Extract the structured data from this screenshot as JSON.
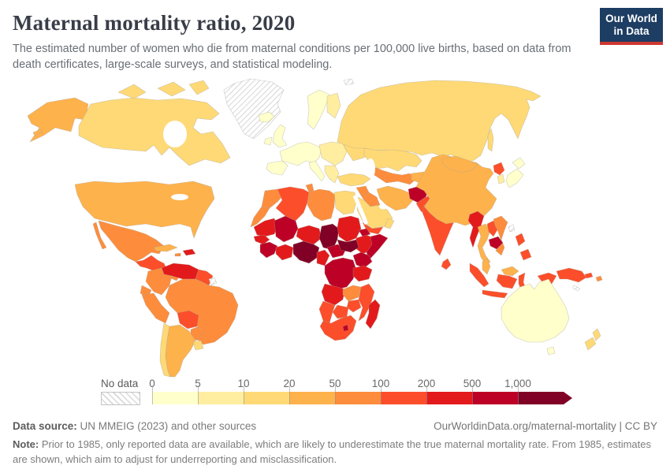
{
  "header": {
    "title": "Maternal mortality ratio, 2020",
    "subtitle": "The estimated number of women who die from maternal conditions per 100,000 live births, based on data from death certificates, large-scale surveys, and statistical modeling."
  },
  "logo": {
    "line1": "Our World",
    "line2": "in Data",
    "bg_color": "#1d3d63",
    "accent_color": "#cd3731"
  },
  "legend": {
    "no_data_label": "No data",
    "tick_labels": [
      "0",
      "5",
      "10",
      "20",
      "50",
      "100",
      "200",
      "500",
      "1,000"
    ],
    "bin_colors": [
      "#FFFFCC",
      "#FFEDA0",
      "#FED976",
      "#FEB24C",
      "#FD8D3C",
      "#FC4E2A",
      "#E31A1C",
      "#BD0026",
      "#800026"
    ]
  },
  "footer": {
    "source_label": "Data source:",
    "source_text": " UN MMEIG (2023) and other sources",
    "link_text": "OurWorldinData.org/maternal-mortality | CC BY",
    "note_label": "Note:",
    "note_text": " Prior to 1985, only reported data are available, which are likely to underestimate the true maternal mortality rate. From 1985, estimates are shown, which aim to adjust for underreporting and misclassification."
  },
  "chart_data": {
    "type": "choropleth",
    "title": "Maternal mortality ratio, 2020",
    "unit": "maternal deaths per 100,000 live births",
    "legend_bins": [
      {
        "range": "0-5",
        "color": "#FFFFCC"
      },
      {
        "range": "5-10",
        "color": "#FFEDA0"
      },
      {
        "range": "10-20",
        "color": "#FED976"
      },
      {
        "range": "20-50",
        "color": "#FEB24C"
      },
      {
        "range": "50-100",
        "color": "#FD8D3C"
      },
      {
        "range": "100-200",
        "color": "#FC4E2A"
      },
      {
        "range": "200-500",
        "color": "#E31A1C"
      },
      {
        "range": "500-1,000",
        "color": "#BD0026"
      },
      {
        "range": "1,000+",
        "color": "#800026"
      }
    ],
    "no_data": {
      "label": "No data",
      "pattern": "diagonal-hatch"
    },
    "regions": {
      "united-states": {
        "name": "United States",
        "bin": "20-50",
        "color": "#FEB24C"
      },
      "canada": {
        "name": "Canada",
        "bin": "10-20",
        "color": "#FED976"
      },
      "greenland": {
        "name": "Greenland",
        "bin": "no-data",
        "color": "hatch"
      },
      "svalbard": {
        "name": "Svalbard",
        "bin": "no-data",
        "color": "hatch"
      },
      "mexico": {
        "name": "Mexico",
        "bin": "50-100",
        "color": "#FD8D3C"
      },
      "guatemala-region": {
        "name": "Central America (north)",
        "bin": "100-200",
        "color": "#FC4E2A"
      },
      "panama-region": {
        "name": "Central America (south)",
        "bin": "50-100",
        "color": "#FD8D3C"
      },
      "cuba": {
        "name": "Cuba",
        "bin": "20-50",
        "color": "#FEB24C"
      },
      "haiti": {
        "name": "Haiti / Dominican Republic",
        "bin": "200-500",
        "color": "#E31A1C"
      },
      "jamaica": {
        "name": "Jamaica",
        "bin": "50-100",
        "color": "#FD8D3C"
      },
      "venezuela": {
        "name": "Venezuela",
        "bin": "200-500",
        "color": "#E31A1C"
      },
      "colombia": {
        "name": "Colombia",
        "bin": "50-100",
        "color": "#FD8D3C"
      },
      "guyana": {
        "name": "Guyana / Suriname",
        "bin": "100-200",
        "color": "#FC4E2A"
      },
      "french-guiana": {
        "name": "French Guiana",
        "bin": "no-data",
        "color": "hatch"
      },
      "ecuador": {
        "name": "Ecuador",
        "bin": "50-100",
        "color": "#FD8D3C"
      },
      "peru": {
        "name": "Peru",
        "bin": "50-100",
        "color": "#FD8D3C"
      },
      "brazil": {
        "name": "Brazil",
        "bin": "50-100",
        "color": "#FD8D3C"
      },
      "bolivia": {
        "name": "Bolivia",
        "bin": "100-200",
        "color": "#FC4E2A"
      },
      "paraguay": {
        "name": "Paraguay",
        "bin": "50-100",
        "color": "#FD8D3C"
      },
      "chile": {
        "name": "Chile",
        "bin": "10-20",
        "color": "#FED976"
      },
      "argentina": {
        "name": "Argentina",
        "bin": "20-50",
        "color": "#FEB24C"
      },
      "uruguay": {
        "name": "Uruguay",
        "bin": "10-20",
        "color": "#FED976"
      },
      "iceland": {
        "name": "Iceland",
        "bin": "0-5",
        "color": "#FFFFCC"
      },
      "united-kingdom": {
        "name": "United Kingdom",
        "bin": "0-5",
        "color": "#FFFFCC"
      },
      "ireland": {
        "name": "Ireland",
        "bin": "0-5",
        "color": "#FFFFCC"
      },
      "norway-sweden": {
        "name": "Norway / Sweden",
        "bin": "0-5",
        "color": "#FFFFCC"
      },
      "finland": {
        "name": "Finland",
        "bin": "5-10",
        "color": "#FFEDA0"
      },
      "western-europe": {
        "name": "Western Europe",
        "bin": "0-5",
        "color": "#FFFFCC"
      },
      "iberia": {
        "name": "Spain / Portugal",
        "bin": "0-5",
        "color": "#FFFFCC"
      },
      "italy": {
        "name": "Italy",
        "bin": "0-5",
        "color": "#FFFFCC"
      },
      "central-europe": {
        "name": "Central Europe",
        "bin": "5-10",
        "color": "#FFEDA0"
      },
      "balkans": {
        "name": "Balkans / Greece",
        "bin": "5-10",
        "color": "#FFEDA0"
      },
      "ukraine": {
        "name": "Ukraine",
        "bin": "10-20",
        "color": "#FED976"
      },
      "russia": {
        "name": "Russia",
        "bin": "10-20",
        "color": "#FED976"
      },
      "kazakhstan": {
        "name": "Kazakhstan",
        "bin": "10-20",
        "color": "#FED976"
      },
      "central-asia": {
        "name": "Turkmenistan / Uzbekistan",
        "bin": "50-100",
        "color": "#FD8D3C"
      },
      "kyrgyzstan-region": {
        "name": "Kyrgyzstan / Tajikistan",
        "bin": "20-50",
        "color": "#FEB24C"
      },
      "turkey": {
        "name": "Turkey",
        "bin": "10-20",
        "color": "#FED976"
      },
      "syria": {
        "name": "Syria",
        "bin": "50-100",
        "color": "#FD8D3C"
      },
      "iraq": {
        "name": "Iraq",
        "bin": "50-100",
        "color": "#FD8D3C"
      },
      "iran": {
        "name": "Iran",
        "bin": "20-50",
        "color": "#FEB24C"
      },
      "afghanistan": {
        "name": "Afghanistan",
        "bin": "500-1,000",
        "color": "#BD0026"
      },
      "pakistan": {
        "name": "Pakistan",
        "bin": "100-200",
        "color": "#FC4E2A"
      },
      "saudi-arabia": {
        "name": "Saudi Arabia",
        "bin": "10-20",
        "color": "#FED976"
      },
      "yemen": {
        "name": "Yemen",
        "bin": "100-200",
        "color": "#FC4E2A"
      },
      "oman": {
        "name": "Oman",
        "bin": "10-20",
        "color": "#FED976"
      },
      "morocco": {
        "name": "Morocco",
        "bin": "50-100",
        "color": "#FD8D3C"
      },
      "western-sahara": {
        "name": "Western Sahara",
        "bin": "50-100",
        "color": "#FD8D3C"
      },
      "algeria": {
        "name": "Algeria",
        "bin": "100-200",
        "color": "#FC4E2A"
      },
      "tunisia": {
        "name": "Tunisia",
        "bin": "50-100",
        "color": "#FD8D3C"
      },
      "libya": {
        "name": "Libya",
        "bin": "50-100",
        "color": "#FD8D3C"
      },
      "egypt": {
        "name": "Egypt",
        "bin": "10-20",
        "color": "#FED976"
      },
      "mauritania": {
        "name": "Mauritania",
        "bin": "200-500",
        "color": "#E31A1C"
      },
      "mali": {
        "name": "Mali",
        "bin": "500-1,000",
        "color": "#BD0026"
      },
      "niger": {
        "name": "Niger",
        "bin": "200-500",
        "color": "#E31A1C"
      },
      "chad": {
        "name": "Chad",
        "bin": "1,000+",
        "color": "#800026"
      },
      "sudan": {
        "name": "Sudan",
        "bin": "200-500",
        "color": "#E31A1C"
      },
      "eritrea": {
        "name": "Eritrea / Djibouti",
        "bin": "500-1,000",
        "color": "#BD0026"
      },
      "ethiopia": {
        "name": "Ethiopia",
        "bin": "200-500",
        "color": "#E31A1C"
      },
      "somalia": {
        "name": "Somalia",
        "bin": "500-1,000",
        "color": "#BD0026"
      },
      "senegal": {
        "name": "Senegal / Gambia",
        "bin": "200-500",
        "color": "#E31A1C"
      },
      "guinea": {
        "name": "Guinea / Sierra Leone / Liberia",
        "bin": "500-1,000",
        "color": "#BD0026"
      },
      "cote-divoire-ghana": {
        "name": "Côte d'Ivoire / Ghana",
        "bin": "200-500",
        "color": "#E31A1C"
      },
      "nigeria": {
        "name": "Nigeria",
        "bin": "1,000+",
        "color": "#800026"
      },
      "cameroon": {
        "name": "Cameroon",
        "bin": "200-500",
        "color": "#E31A1C"
      },
      "central-african-republic": {
        "name": "Central African Republic",
        "bin": "500-1,000",
        "color": "#BD0026"
      },
      "south-sudan": {
        "name": "South Sudan",
        "bin": "1,000+",
        "color": "#800026"
      },
      "dr-congo": {
        "name": "Democratic Republic of Congo",
        "bin": "500-1,000",
        "color": "#BD0026"
      },
      "kenya": {
        "name": "Kenya / Uganda",
        "bin": "500-1,000",
        "color": "#BD0026"
      },
      "tanzania": {
        "name": "Tanzania",
        "bin": "200-500",
        "color": "#E31A1C"
      },
      "angola": {
        "name": "Angola",
        "bin": "200-500",
        "color": "#E31A1C"
      },
      "zambia": {
        "name": "Zambia",
        "bin": "50-100",
        "color": "#FD8D3C"
      },
      "mozambique": {
        "name": "Mozambique / Malawi",
        "bin": "100-200",
        "color": "#FC4E2A"
      },
      "zimbabwe": {
        "name": "Zimbabwe",
        "bin": "100-200",
        "color": "#FC4E2A"
      },
      "botswana": {
        "name": "Botswana",
        "bin": "100-200",
        "color": "#FC4E2A"
      },
      "namibia": {
        "name": "Namibia",
        "bin": "100-200",
        "color": "#FC4E2A"
      },
      "south-africa": {
        "name": "South Africa",
        "bin": "100-200",
        "color": "#FC4E2A"
      },
      "lesotho": {
        "name": "Lesotho",
        "bin": "500-1,000",
        "color": "#BD0026"
      },
      "madagascar": {
        "name": "Madagascar",
        "bin": "200-500",
        "color": "#E31A1C"
      },
      "india": {
        "name": "India",
        "bin": "100-200",
        "color": "#FC4E2A"
      },
      "nepal": {
        "name": "Nepal",
        "bin": "200-500",
        "color": "#E31A1C"
      },
      "bangladesh": {
        "name": "Bangladesh",
        "bin": "100-200",
        "color": "#FC4E2A"
      },
      "sri-lanka": {
        "name": "Sri Lanka",
        "bin": "100-200",
        "color": "#FC4E2A"
      },
      "china": {
        "name": "China",
        "bin": "20-50",
        "color": "#FEB24C"
      },
      "mongolia": {
        "name": "Mongolia",
        "bin": "20-50",
        "color": "#FEB24C"
      },
      "myanmar": {
        "name": "Myanmar",
        "bin": "200-500",
        "color": "#E31A1C"
      },
      "thailand": {
        "name": "Thailand",
        "bin": "20-50",
        "color": "#FEB24C"
      },
      "laos": {
        "name": "Laos",
        "bin": "100-200",
        "color": "#FC4E2A"
      },
      "cambodia": {
        "name": "Cambodia",
        "bin": "500-1,000",
        "color": "#BD0026"
      },
      "vietnam": {
        "name": "Vietnam",
        "bin": "50-100",
        "color": "#FD8D3C"
      },
      "malaysia": {
        "name": "Malaysia",
        "bin": "20-50",
        "color": "#FEB24C"
      },
      "indonesia": {
        "name": "Indonesia",
        "bin": "100-200",
        "color": "#FC4E2A"
      },
      "philippines": {
        "name": "Philippines",
        "bin": "100-200",
        "color": "#FC4E2A"
      },
      "taiwan": {
        "name": "Taiwan",
        "bin": "no-data",
        "color": "hatch"
      },
      "papua-new-guinea": {
        "name": "Papua New Guinea",
        "bin": "100-200",
        "color": "#FC4E2A"
      },
      "japan": {
        "name": "Japan",
        "bin": "0-5",
        "color": "#FFFFCC"
      },
      "south-korea": {
        "name": "South Korea",
        "bin": "5-10",
        "color": "#FFEDA0"
      },
      "north-korea": {
        "name": "North Korea",
        "bin": "100-200",
        "color": "#FC4E2A"
      },
      "australia": {
        "name": "Australia",
        "bin": "0-5",
        "color": "#FFFFCC"
      },
      "new-zealand": {
        "name": "New Zealand",
        "bin": "10-20",
        "color": "#FED976"
      },
      "fiji": {
        "name": "Fiji",
        "bin": "50-100",
        "color": "#FD8D3C"
      },
      "solomon-islands": {
        "name": "Solomon Islands",
        "bin": "100-200",
        "color": "#FC4E2A"
      },
      "new-caledonia": {
        "name": "New Caledonia",
        "bin": "no-data",
        "color": "hatch"
      }
    }
  }
}
